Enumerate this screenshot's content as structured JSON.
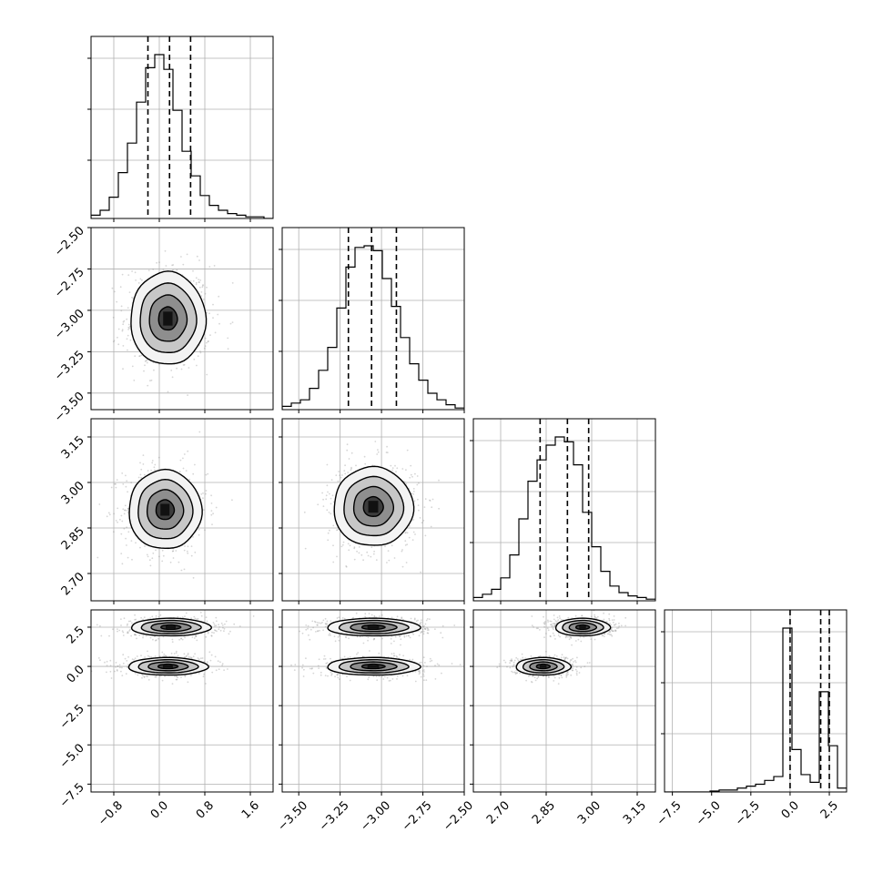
{
  "chart_data": {
    "type": "corner",
    "variables": [
      {
        "range": [
          -1.2,
          2.0
        ],
        "ticks": [
          -0.8,
          0.0,
          0.8,
          1.6
        ],
        "tick_labels": [
          "−0.8",
          "0.0",
          "0.8",
          "1.6"
        ],
        "quantiles": [
          -0.2,
          0.18,
          0.55
        ],
        "hist": {
          "edges_start": -1.2,
          "bin_width": 0.16,
          "values": [
            0.02,
            0.05,
            0.13,
            0.28,
            0.46,
            0.71,
            0.92,
            1.0,
            0.91,
            0.66,
            0.41,
            0.26,
            0.14,
            0.08,
            0.05,
            0.03,
            0.02,
            0.01,
            0.01,
            0.0
          ]
        }
      },
      {
        "range": [
          -3.6,
          -2.5
        ],
        "ticks": [
          -3.5,
          -3.25,
          -3.0,
          -2.75,
          -2.5
        ],
        "tick_labels": [
          "−3.50",
          "−3.25",
          "−3.00",
          "−2.75",
          "−2.50"
        ],
        "quantiles": [
          -3.2,
          -3.06,
          -2.91
        ],
        "hist": {
          "edges_start": -3.6,
          "bin_width": 0.055,
          "values": [
            0.02,
            0.04,
            0.06,
            0.13,
            0.24,
            0.38,
            0.62,
            0.87,
            0.99,
            1.0,
            0.97,
            0.8,
            0.63,
            0.44,
            0.28,
            0.18,
            0.1,
            0.06,
            0.03,
            0.01
          ]
        }
      },
      {
        "range": [
          2.61,
          3.21
        ],
        "ticks": [
          2.7,
          2.85,
          3.0,
          3.15
        ],
        "tick_labels": [
          "2.70",
          "2.85",
          "3.00",
          "3.15"
        ],
        "quantiles": [
          2.83,
          2.92,
          2.99
        ],
        "hist": {
          "edges_start": 2.61,
          "bin_width": 0.03,
          "values": [
            0.02,
            0.04,
            0.07,
            0.14,
            0.28,
            0.5,
            0.73,
            0.86,
            0.95,
            1.0,
            0.97,
            0.83,
            0.54,
            0.33,
            0.18,
            0.09,
            0.05,
            0.03,
            0.02,
            0.01
          ]
        }
      },
      {
        "range": [
          -8.0,
          3.6
        ],
        "ticks": [
          -7.5,
          -5.0,
          -2.5,
          0.0,
          2.5
        ],
        "tick_labels": [
          "−7.5",
          "−5.0",
          "−2.5",
          "0.0",
          "2.5"
        ],
        "quantiles": [
          0.0,
          1.95,
          2.5
        ],
        "hist": {
          "edges_start": -8.0,
          "bin_width": 0.58,
          "values": [
            0.0,
            0.0,
            0.0,
            0.0,
            0.0,
            0.005,
            0.01,
            0.01,
            0.02,
            0.03,
            0.04,
            0.06,
            0.08,
            0.85,
            0.22,
            0.09,
            0.05,
            0.52,
            0.24,
            0.02
          ]
        }
      }
    ],
    "blobs": [
      {
        "row": 1,
        "col": 0,
        "cx": 0.15,
        "cy": -3.05,
        "sx": 0.33,
        "sy": 0.14
      },
      {
        "row": 2,
        "col": 0,
        "cx": 0.1,
        "cy": 2.91,
        "sx": 0.32,
        "sy": 0.065
      },
      {
        "row": 2,
        "col": 1,
        "cx": -3.05,
        "cy": 2.92,
        "sx": 0.12,
        "sy": 0.065
      },
      {
        "row": 3,
        "col": 0,
        "cx": 0.2,
        "cy": 2.5,
        "sx": 0.35,
        "sy": 0.28
      },
      {
        "row": 3,
        "col": 0,
        "cx": 0.15,
        "cy": 0.0,
        "sx": 0.35,
        "sy": 0.28
      },
      {
        "row": 3,
        "col": 1,
        "cx": -3.05,
        "cy": 2.5,
        "sx": 0.14,
        "sy": 0.28
      },
      {
        "row": 3,
        "col": 1,
        "cx": -3.05,
        "cy": 0.0,
        "sx": 0.14,
        "sy": 0.28
      },
      {
        "row": 3,
        "col": 2,
        "cx": 2.97,
        "cy": 2.5,
        "sx": 0.045,
        "sy": 0.28
      },
      {
        "row": 3,
        "col": 2,
        "cx": 2.84,
        "cy": 0.0,
        "sx": 0.045,
        "sy": 0.28
      }
    ],
    "contour_levels_sigma": [
      0.5,
      1.0,
      1.5,
      2.0
    ],
    "grid": true
  }
}
